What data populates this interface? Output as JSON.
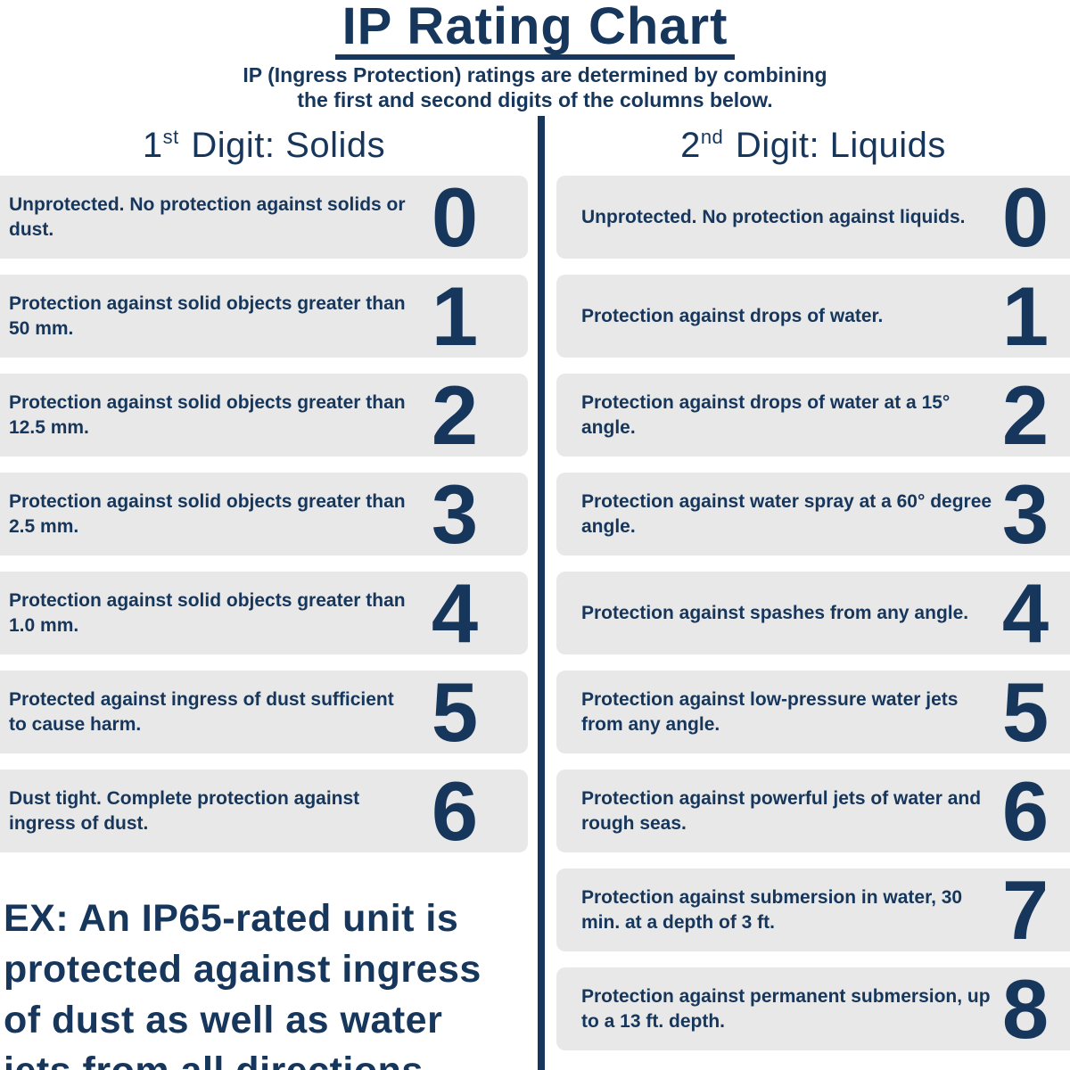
{
  "title": "IP Rating Chart",
  "subtitle": {
    "line1": "IP (Ingress Protection) ratings are determined by combining",
    "line2": "the first and second digits of the columns below."
  },
  "columns": [
    {
      "key": "solids",
      "header": {
        "number": "1",
        "ordinal": "st",
        "rest": "Digit: Solids"
      },
      "rows": [
        {
          "digit": "0",
          "text": "Unprotected. No protection against solids or dust."
        },
        {
          "digit": "1",
          "text": "Protection against solid objects greater than 50 mm."
        },
        {
          "digit": "2",
          "text": "Protection against solid objects greater than 12.5 mm."
        },
        {
          "digit": "3",
          "text": "Protection against solid objects greater than 2.5 mm."
        },
        {
          "digit": "4",
          "text": "Protection against solid objects greater than 1.0 mm."
        },
        {
          "digit": "5",
          "text": "Protected against ingress of dust sufficient to cause harm."
        },
        {
          "digit": "6",
          "text": "Dust tight. Complete protection against ingress of dust."
        }
      ]
    },
    {
      "key": "liquids",
      "header": {
        "number": "2",
        "ordinal": "nd",
        "rest": "Digit: Liquids"
      },
      "rows": [
        {
          "digit": "0",
          "text": "Unprotected. No protection against liquids."
        },
        {
          "digit": "1",
          "text": "Protection against drops of water."
        },
        {
          "digit": "2",
          "text": "Protection against drops of water at a 15° angle."
        },
        {
          "digit": "3",
          "text": "Protection against water spray at a 60° degree angle."
        },
        {
          "digit": "4",
          "text": "Protection against spashes from any angle."
        },
        {
          "digit": "5",
          "text": "Protection against low-pressure water jets from any angle."
        },
        {
          "digit": "6",
          "text": "Protection against powerful jets of water and rough seas."
        },
        {
          "digit": "7",
          "text": "Protection against submersion in water, 30 min. at a depth of 3 ft."
        },
        {
          "digit": "8",
          "text": "Protection against permanent submersion, up to a 13 ft. depth."
        }
      ]
    }
  ],
  "example": {
    "lines": [
      "EX: An IP65-rated unit is",
      "protected against ingress",
      "of dust as well as water",
      "jets from all directions."
    ]
  },
  "colors": {
    "navy": "#16365c",
    "row_bg": "#e8e8e8",
    "background": "#ffffff"
  }
}
